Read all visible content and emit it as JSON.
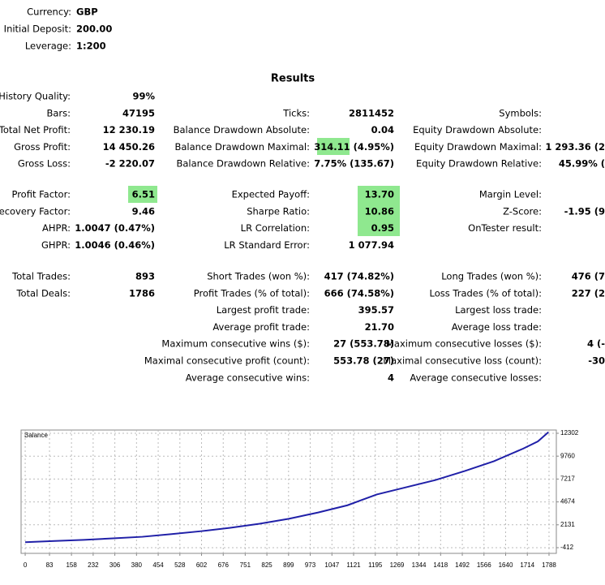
{
  "header": {
    "items": [
      {
        "label": "Currency:",
        "value": "GBP"
      },
      {
        "label": "Initial Deposit:",
        "value": "200.00"
      },
      {
        "label": "Leverage:",
        "value": "1:200"
      }
    ]
  },
  "results": {
    "title": "Results",
    "blocks": [
      [
        [
          {
            "label": "History Quality:",
            "value": "99%"
          },
          null,
          null
        ],
        [
          {
            "label": "Bars:",
            "value": "47195"
          },
          {
            "label": "Ticks:",
            "value": "2811452"
          },
          {
            "label": "Symbols:"
          }
        ],
        [
          {
            "label": "Total Net Profit:",
            "value": "12 230.19"
          },
          {
            "label": "Balance Drawdown Absolute:",
            "value": "0.04"
          },
          {
            "label": "Equity Drawdown Absolute:"
          }
        ],
        [
          {
            "label": "Gross Profit:",
            "value": "14 450.26"
          },
          {
            "label": "Balance Drawdown Maximal:",
            "value": "314.11 (4.95%)"
          },
          {
            "label": "Equity Drawdown Maximal:",
            "value": "1 293.36 (2"
          }
        ],
        [
          {
            "label": "Gross Loss:",
            "value": "-2 220.07"
          },
          {
            "label": "Balance Drawdown Relative:",
            "value": "7.75% (135.67)"
          },
          {
            "label": "Equity Drawdown Relative:",
            "value": "45.99% ("
          }
        ]
      ],
      [
        [
          {
            "label": "Profit Factor:",
            "value": "6.51"
          },
          {
            "label": "Expected Payoff:",
            "value": "13.70"
          },
          {
            "label": "Margin Level:"
          }
        ],
        [
          {
            "label": "Recovery Factor:",
            "value": "9.46"
          },
          {
            "label": "Sharpe Ratio:",
            "value": "10.86"
          },
          {
            "label": "Z-Score:",
            "value": "-1.95 (9"
          }
        ],
        [
          {
            "label": "AHPR:",
            "value": "1.0047 (0.47%)"
          },
          {
            "label": "LR Correlation:",
            "value": "0.95"
          },
          {
            "label": "OnTester result:"
          }
        ],
        [
          {
            "label": "GHPR:",
            "value": "1.0046 (0.46%)"
          },
          {
            "label": "LR Standard Error:",
            "value": "1 077.94"
          },
          null
        ]
      ],
      [
        [
          {
            "label": "Total Trades:",
            "value": "893"
          },
          {
            "label": "Short Trades (won %):",
            "value": "417 (74.82%)"
          },
          {
            "label": "Long Trades (won %):",
            "value": "476 (7"
          }
        ],
        [
          {
            "label": "Total Deals:",
            "value": "1786"
          },
          {
            "label": "Profit Trades (% of total):",
            "value": "666 (74.58%)"
          },
          {
            "label": "Loss Trades (% of total):",
            "value": "227 (2"
          }
        ],
        [
          null,
          {
            "label": "Largest profit trade:",
            "value": "395.57"
          },
          {
            "label": "Largest loss trade:"
          }
        ],
        [
          null,
          {
            "label": "Average profit trade:",
            "value": "21.70"
          },
          {
            "label": "Average loss trade:"
          }
        ],
        [
          null,
          {
            "label": "Maximum consecutive wins ($):",
            "value": "27 (553.78)"
          },
          {
            "label": "Maximum consecutive losses ($):",
            "value": "4 (-"
          }
        ],
        [
          null,
          {
            "label": "Maximal consecutive profit (count):",
            "value": "553.78 (27)"
          },
          {
            "label": "Maximal consecutive loss (count):",
            "value": "-30"
          }
        ],
        [
          null,
          {
            "label": "Average consecutive wins:",
            "value": "4"
          },
          {
            "label": "Average consecutive losses:"
          }
        ]
      ]
    ]
  },
  "chart_data": {
    "type": "line",
    "title": "Balance",
    "color": "#2020a8",
    "x": [
      0,
      100,
      200,
      300,
      400,
      500,
      600,
      700,
      800,
      900,
      1000,
      1100,
      1150,
      1200,
      1300,
      1400,
      1500,
      1600,
      1700,
      1750,
      1786
    ],
    "values": [
      200,
      330,
      460,
      620,
      800,
      1100,
      1420,
      1800,
      2250,
      2800,
      3500,
      4300,
      4900,
      5500,
      6300,
      7100,
      8100,
      9200,
      10600,
      11400,
      12430
    ],
    "xlim": [
      -14,
      1813
    ],
    "xticks": [
      0,
      83,
      158,
      232,
      306,
      380,
      454,
      528,
      602,
      676,
      751,
      825,
      899,
      973,
      1047,
      1121,
      1195,
      1269,
      1344,
      1418,
      1492,
      1566,
      1640,
      1714,
      1788
    ],
    "ylim": [
      -1043,
      12663
    ],
    "yticks": [
      -412,
      2131,
      4674,
      7217,
      9760,
      12302
    ],
    "grid": true
  }
}
